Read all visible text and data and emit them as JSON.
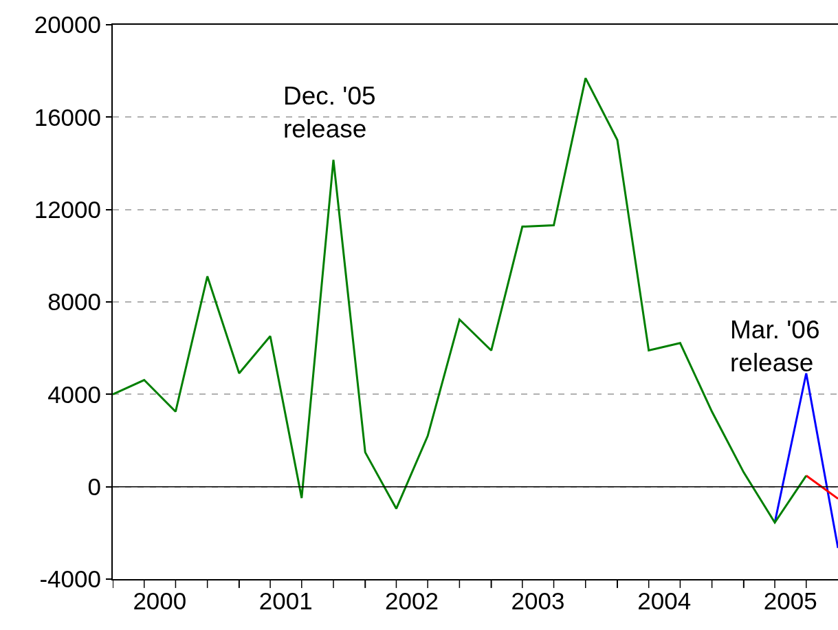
{
  "chart_data": {
    "type": "line",
    "x": [
      "2000-01",
      "2000-04",
      "2000-07",
      "2000-10",
      "2001-01",
      "2001-04",
      "2001-07",
      "2001-10",
      "2002-01",
      "2002-04",
      "2002-07",
      "2002-10",
      "2003-01",
      "2003-04",
      "2003-07",
      "2003-10",
      "2004-01",
      "2004-04",
      "2004-07",
      "2004-10",
      "2005-01",
      "2005-04",
      "2005-07",
      "2005-10"
    ],
    "series": [
      {
        "color": "#0000ff",
        "values": [
          null,
          null,
          null,
          null,
          null,
          null,
          null,
          null,
          null,
          null,
          null,
          null,
          null,
          null,
          null,
          null,
          null,
          null,
          null,
          null,
          null,
          -1550,
          4910,
          -2650
        ]
      },
      {
        "color": "#ff0000",
        "values": [
          null,
          null,
          null,
          null,
          null,
          null,
          null,
          null,
          null,
          null,
          null,
          null,
          null,
          null,
          null,
          null,
          null,
          null,
          null,
          null,
          null,
          null,
          480,
          -520
        ]
      },
      {
        "color": "#007f00",
        "values": [
          4000,
          4620,
          3250,
          9110,
          4910,
          6520,
          -490,
          14150,
          1490,
          -950,
          2200,
          7240,
          5900,
          11260,
          11320,
          17690,
          15010,
          5900,
          6220,
          3250,
          620,
          -1550,
          480,
          null
        ]
      }
    ],
    "annotations": [
      "Dec. '05\nrelease",
      "Mar. '06\nrelease"
    ],
    "xlim": [
      "2000-01",
      "2005-10"
    ],
    "xticks": [
      {
        "value": "2000-01",
        "label": null
      },
      {
        "value": "2000-04",
        "label": null
      },
      {
        "value": "2000-07",
        "label": null
      },
      {
        "value": "2000-10",
        "label": null
      },
      {
        "value": "2000-05-16",
        "label": "2000"
      },
      {
        "value": "2001-01",
        "label": null
      },
      {
        "value": "2001-04",
        "label": null
      },
      {
        "value": "2001-07",
        "label": null
      },
      {
        "value": "2001-10",
        "label": null
      },
      {
        "value": "2001-05-16",
        "label": "2001"
      },
      {
        "value": "2002-01",
        "label": null
      },
      {
        "value": "2002-04",
        "label": null
      },
      {
        "value": "2002-07",
        "label": null
      },
      {
        "value": "2002-10",
        "label": null
      },
      {
        "value": "2002-05-16",
        "label": "2002"
      },
      {
        "value": "2003-01",
        "label": null
      },
      {
        "value": "2003-04",
        "label": null
      },
      {
        "value": "2003-07",
        "label": null
      },
      {
        "value": "2003-10",
        "label": null
      },
      {
        "value": "2003-05-16",
        "label": "2003"
      },
      {
        "value": "2004-01",
        "label": null
      },
      {
        "value": "2004-04",
        "label": null
      },
      {
        "value": "2004-07",
        "label": null
      },
      {
        "value": "2004-10",
        "label": null
      },
      {
        "value": "2004-05-16",
        "label": "2004"
      },
      {
        "value": "2005-01",
        "label": null
      },
      {
        "value": "2005-04",
        "label": null
      },
      {
        "value": "2005-07",
        "label": null
      },
      {
        "value": "2005-05-16",
        "label": "2005"
      }
    ],
    "ylim": [
      -4000,
      20000
    ],
    "yticks": [
      -4000,
      0,
      4000,
      8000,
      12000,
      16000,
      20000
    ],
    "grid": "y",
    "ref_lines": [
      {
        "axis": "y",
        "value": 0,
        "color": "#000000",
        "line_style": "solid"
      }
    ],
    "marker": "none",
    "line_style": "solid"
  }
}
